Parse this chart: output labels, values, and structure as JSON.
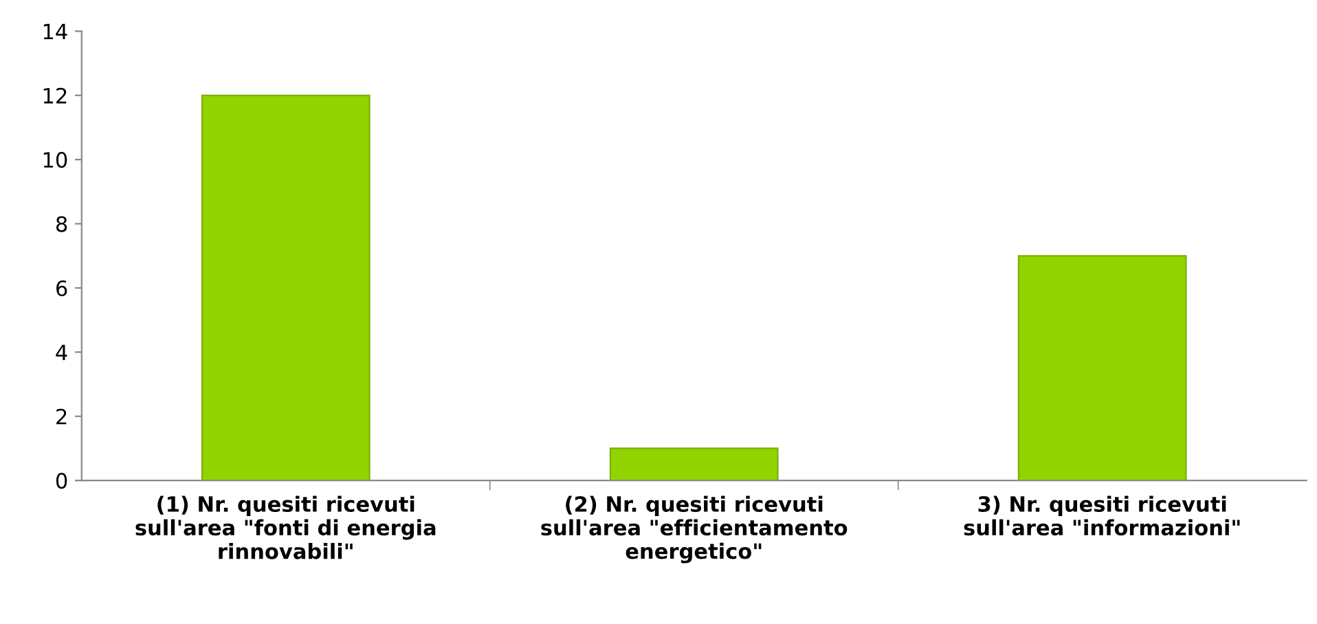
{
  "chart_data": {
    "type": "bar",
    "categories": [
      "(1) Nr. quesiti ricevuti\nsull'area \"fonti di energia\nrinnovabili\"",
      "(2) Nr. quesiti ricevuti\nsull'area \"efficientamento\nenergetico\"",
      "3) Nr. quesiti ricevuti\nsull'area \"informazioni\""
    ],
    "values": [
      12,
      1,
      7
    ],
    "color": "#92d400",
    "ylim": [
      0,
      14
    ],
    "yticks": [
      0,
      2,
      4,
      6,
      8,
      10,
      12,
      14
    ],
    "grid": false,
    "legend": false
  }
}
